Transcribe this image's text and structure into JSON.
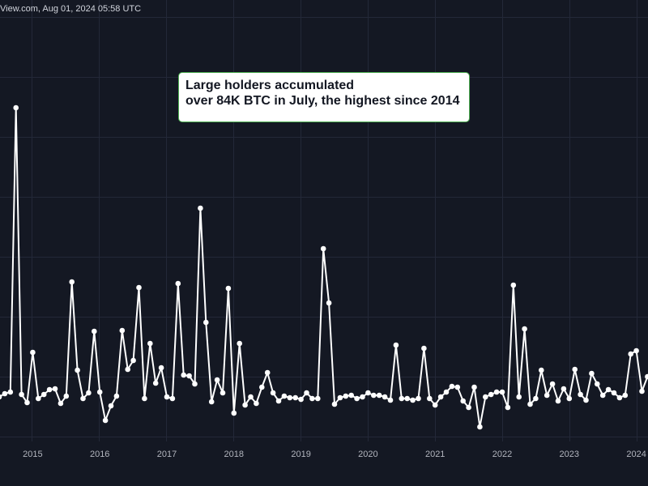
{
  "header": {
    "source": "View.com, Aug 01, 2024 05:58 UTC"
  },
  "chart_data": {
    "type": "line",
    "annotation": [
      "Large holders accumulated",
      "over 84K BTC in July, the highest since 2014"
    ],
    "color": "#ffffff",
    "ylim": [
      0,
      540
    ],
    "categories": [
      null,
      null,
      null,
      null,
      null,
      null,
      "2015",
      null,
      null,
      null,
      null,
      null,
      null,
      null,
      null,
      null,
      null,
      null,
      "2016",
      null,
      null,
      null,
      null,
      null,
      null,
      null,
      null,
      null,
      null,
      null,
      "2017",
      null,
      null,
      null,
      null,
      null,
      null,
      null,
      null,
      null,
      null,
      null,
      "2018",
      null,
      null,
      null,
      null,
      null,
      null,
      null,
      null,
      null,
      null,
      null,
      "2019",
      null,
      null,
      null,
      null,
      null,
      null,
      null,
      null,
      null,
      null,
      null,
      "2020",
      null,
      null,
      null,
      null,
      null,
      null,
      null,
      null,
      null,
      null,
      null,
      "2021",
      null,
      null,
      null,
      null,
      null,
      null,
      null,
      null,
      null,
      null,
      null,
      "2022",
      null,
      null,
      null,
      null,
      null,
      null,
      null,
      null,
      null,
      null,
      null,
      "2023",
      null,
      null,
      null,
      null,
      null,
      null,
      null,
      null,
      null,
      null,
      null,
      "2024",
      null,
      null
    ],
    "values": [
      50,
      54,
      56,
      407,
      53,
      43,
      105,
      48,
      53,
      59,
      60,
      42,
      51,
      192,
      83,
      48,
      55,
      131,
      56,
      21,
      39,
      51,
      132,
      84,
      95,
      185,
      48,
      116,
      67,
      86,
      50,
      48,
      190,
      77,
      76,
      66,
      283,
      142,
      44,
      71,
      55,
      184,
      30,
      116,
      40,
      50,
      42,
      62,
      80,
      55,
      45,
      51,
      49,
      49,
      47,
      55,
      48,
      48,
      233,
      166,
      41,
      49,
      51,
      52,
      48,
      50,
      55,
      52,
      52,
      50,
      46,
      114,
      48,
      48,
      46,
      48,
      110,
      48,
      40,
      50,
      56,
      63,
      62,
      45,
      37,
      62,
      13,
      50,
      53,
      56,
      56,
      37,
      188,
      50,
      134,
      41,
      48,
      83,
      52,
      66,
      45,
      60,
      48,
      84,
      53,
      46,
      79,
      66,
      52,
      59,
      55,
      49,
      52,
      103,
      107,
      57,
      75
    ]
  }
}
